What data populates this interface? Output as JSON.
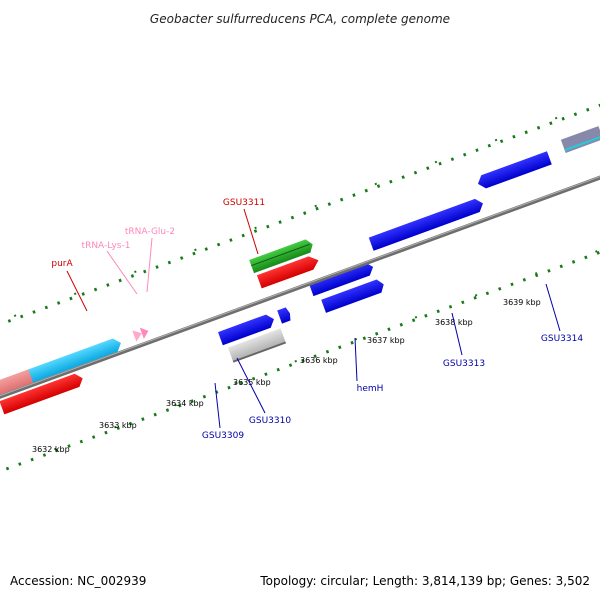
{
  "title": "Geobacter sulfurreducens PCA, complete genome",
  "footer": {
    "accession": "Accession: NC_002939",
    "summary": "Topology: circular; Length: 3,814,139 bp; Genes: 3,502"
  },
  "scale_labels": [
    "3632 kbp",
    "3633 kbp",
    "3634 kbp",
    "3635 kbp",
    "3636 kbp",
    "3637 kbp",
    "3638 kbp",
    "3639 kbp"
  ],
  "gene_labels": {
    "purA": "purA",
    "trna_lys": "tRNA-Lys-1",
    "trna_glu": "tRNA-Glu-2",
    "gsu3311": "GSU3311",
    "gsu3309": "GSU3309",
    "gsu3310": "GSU3310",
    "hemH": "hemH",
    "gsu3313": "GSU3313",
    "gsu3314": "GSU3314"
  },
  "colors": {
    "red_label": "#cc0000",
    "pink_label": "#ff88bb",
    "blue_label": "#0000aa",
    "tick_green": "#1a7a1a",
    "backbone": "#7a7a7a"
  }
}
